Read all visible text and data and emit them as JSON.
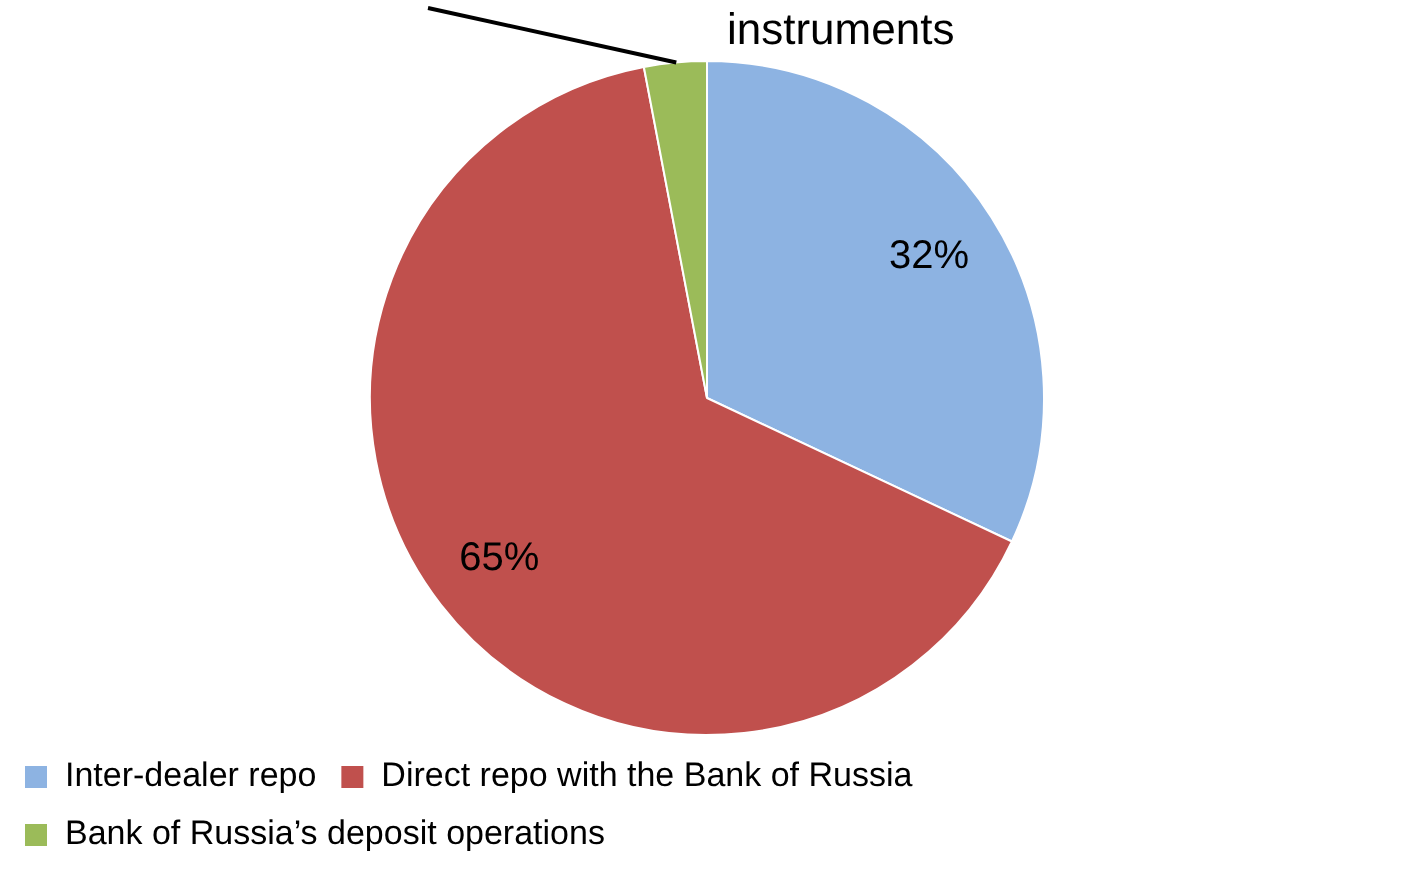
{
  "chart_data": {
    "type": "pie",
    "categories": [
      "Inter-dealer repo",
      "Direct repo with the Bank of Russia",
      "Bank of Russia’s deposit operations"
    ],
    "values": [
      32,
      65,
      3
    ],
    "colors": [
      "#8db3e2",
      "#c0504d",
      "#9bbb59"
    ],
    "value_labels": [
      "32%",
      "65%",
      null
    ],
    "annotations": [
      "instruments"
    ],
    "legend": "bottom"
  }
}
